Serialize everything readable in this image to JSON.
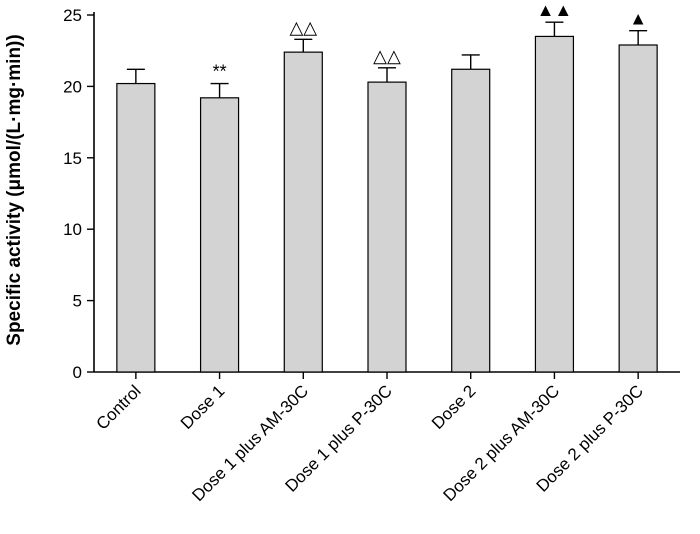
{
  "chart_data": {
    "type": "bar",
    "title": "",
    "xlabel": "",
    "ylabel": "Specific activity (μmol/(L·mg·min))",
    "ylim": [
      0,
      25
    ],
    "yticks": [
      0,
      5,
      10,
      15,
      20,
      25
    ],
    "grid": false,
    "categories": [
      "Control",
      "Dose 1",
      "Dose 1 plus AM-30C",
      "Dose 1 plus P-30C",
      "Dose 2",
      "Dose 2 plus AM-30C",
      "Dose 2 plus P-30C"
    ],
    "values": [
      20.2,
      19.2,
      22.4,
      20.3,
      21.2,
      23.5,
      22.9
    ],
    "errors": [
      1.0,
      1.0,
      0.9,
      1.0,
      1.0,
      1.0,
      1.0
    ],
    "annotations": [
      "",
      "**",
      "△△",
      "△△",
      "",
      "▲▲",
      "▲"
    ],
    "bar_color": "#d3d3d3"
  }
}
